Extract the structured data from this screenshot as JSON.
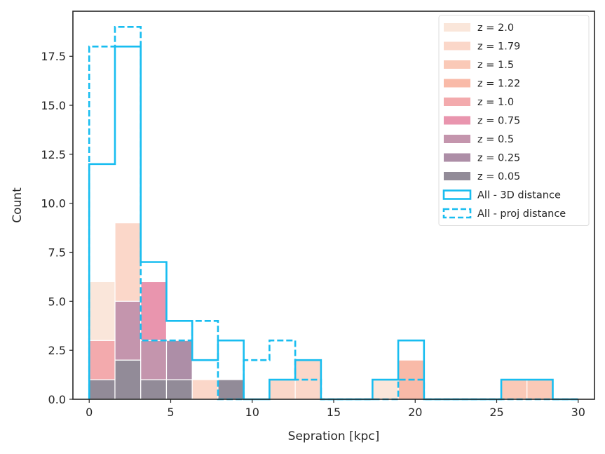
{
  "chart_data": {
    "type": "bar",
    "xlabel": "Sepration [kpc]",
    "ylabel": "Count",
    "xlim": [
      -1.0,
      31.0
    ],
    "ylim": [
      0.0,
      19.8
    ],
    "xticks": [
      0,
      5,
      10,
      15,
      20,
      25,
      30
    ],
    "xtick_labels": [
      "0",
      "5",
      "10",
      "15",
      "20",
      "25",
      "30"
    ],
    "yticks": [
      0.0,
      2.5,
      5.0,
      7.5,
      10.0,
      12.5,
      15.0,
      17.5
    ],
    "ytick_labels": [
      "0.0",
      "2.5",
      "5.0",
      "7.5",
      "10.0",
      "12.5",
      "15.0",
      "17.5"
    ],
    "bin_edges": [
      0.0,
      1.58,
      3.16,
      4.74,
      6.32,
      7.9,
      9.48,
      11.06,
      12.64,
      14.22,
      15.8,
      17.38,
      18.96,
      20.54,
      22.12,
      23.7,
      25.28,
      26.86,
      28.44,
      30.0
    ],
    "hist_bins": [
      0.0,
      1.58,
      3.16,
      4.74,
      6.32,
      7.9,
      9.48,
      11.06,
      12.64,
      14.22,
      15.8,
      17.38,
      18.96,
      20.54,
      22.12,
      23.7,
      25.28,
      26.86,
      28.44,
      30.0
    ],
    "layers": [
      {
        "name": "z = 2.0",
        "color": "#f5cdb6",
        "bars": [
          {
            "bin": 0,
            "value": 3
          },
          {
            "bin": 11,
            "value": 1
          }
        ]
      },
      {
        "name": "z = 1.79",
        "color": "#f7b093",
        "bars": [
          {
            "bin": 1,
            "value": 4
          },
          {
            "bin": 4,
            "value": 1
          },
          {
            "bin": 7,
            "value": 1
          },
          {
            "bin": 8,
            "value": 2
          }
        ]
      },
      {
        "name": "z = 1.5",
        "color": "#f6936f",
        "bars": [
          {
            "bin": 16,
            "value": 1
          },
          {
            "bin": 17,
            "value": 1
          }
        ]
      },
      {
        "name": "z = 1.22",
        "color": "#f37651",
        "bars": [
          {
            "bin": 12,
            "value": 2
          }
        ]
      },
      {
        "name": "z = 1.0",
        "color": "#e8555b",
        "bars": [
          {
            "bin": 0,
            "value": 2
          }
        ]
      },
      {
        "name": "z = 0.75",
        "color": "#d42c5e",
        "bars": [
          {
            "bin": 2,
            "value": 3
          }
        ]
      },
      {
        "name": "z = 0.5",
        "color": "#8a2c5c",
        "bars": [
          {
            "bin": 1,
            "value": 3
          },
          {
            "bin": 2,
            "value": 2
          }
        ]
      },
      {
        "name": "z = 0.25",
        "color": "#5c1e50",
        "bars": [
          {
            "bin": 3,
            "value": 2
          }
        ]
      },
      {
        "name": "z = 0.05",
        "color": "#261732",
        "bars": [
          {
            "bin": 0,
            "value": 1
          },
          {
            "bin": 1,
            "value": 2
          },
          {
            "bin": 2,
            "value": 1
          },
          {
            "bin": 3,
            "value": 1
          },
          {
            "bin": 5,
            "value": 1
          }
        ]
      }
    ],
    "layer_alpha": 0.5,
    "series": [
      {
        "name": "All - 3D distance",
        "style": "solid",
        "color": "#18bdf0",
        "values": [
          12,
          18,
          7,
          4,
          2,
          3,
          0,
          1,
          2,
          0,
          0,
          1,
          3,
          0,
          0,
          0,
          1,
          1,
          0
        ]
      },
      {
        "name": "All - proj distance",
        "style": "dashed",
        "color": "#18bdf0",
        "values": [
          18,
          19,
          3,
          3,
          4,
          0,
          2,
          3,
          1,
          0,
          0,
          0,
          1,
          0,
          0,
          0,
          0,
          0,
          0
        ]
      }
    ],
    "legend_position": "upper right",
    "grid": false
  }
}
